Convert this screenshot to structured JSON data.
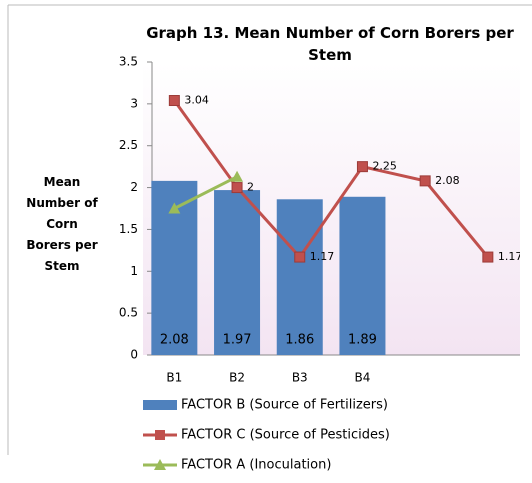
{
  "chart_data": {
    "type": "bar_line",
    "title": "Graph 13.  Mean Number of Corn Borers per Stem",
    "y_label": "Mean Number of Corn Borers per Stem",
    "categories": [
      "B1",
      "B2",
      "B3",
      "B4",
      null,
      null
    ],
    "series": [
      {
        "name": "FACTOR B (Source of Fertilizers)",
        "type": "bar",
        "color": "#4f81bd",
        "values": [
          2.08,
          1.97,
          1.86,
          1.89,
          null,
          null
        ],
        "show_labels": true
      },
      {
        "name": "FACTOR C (Source of Pesticides)",
        "type": "line",
        "color": "#c0504d",
        "marker": "square",
        "values": [
          3.04,
          2,
          1.17,
          2.25,
          2.08,
          1.17
        ],
        "show_labels": true
      },
      {
        "name": "FACTOR A (Inoculation)",
        "type": "line",
        "color": "#9bbb59",
        "marker": "triangle",
        "values": [
          1.75,
          2.13,
          null,
          null,
          null,
          null
        ],
        "show_labels": false
      }
    ],
    "ylim": [
      0,
      3.5
    ],
    "yticks": [
      0,
      0.5,
      1,
      1.5,
      2,
      2.5,
      3,
      3.5
    ],
    "grid": false,
    "legend": "bottom"
  }
}
